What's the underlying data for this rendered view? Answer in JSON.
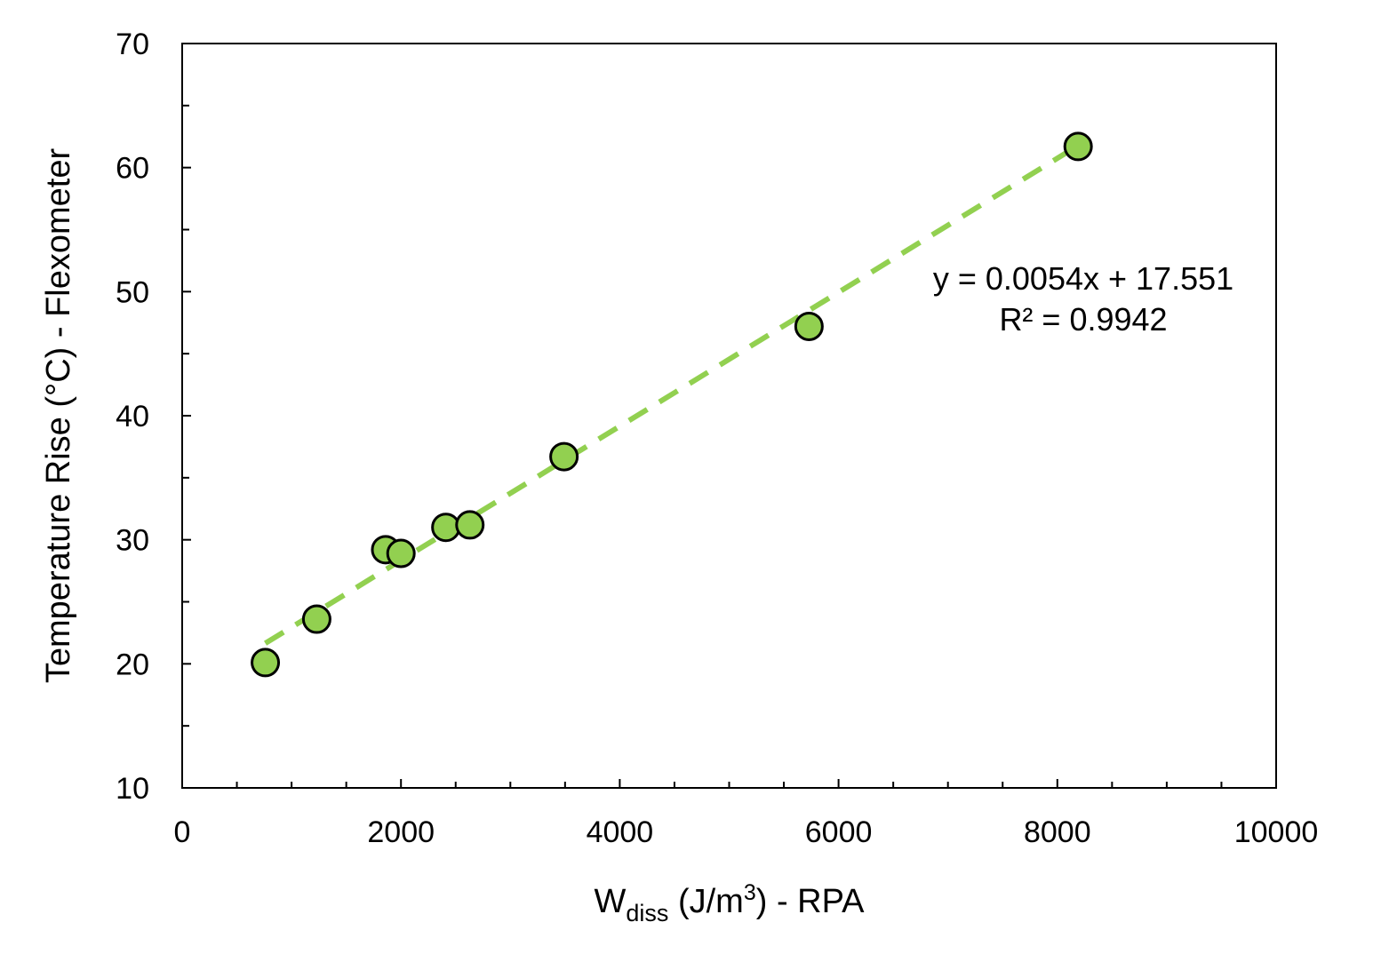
{
  "chart_data": {
    "type": "scatter",
    "xlim": [
      0,
      10000
    ],
    "ylim": [
      10,
      70
    ],
    "x_major_ticks": [
      0,
      2000,
      4000,
      6000,
      8000,
      10000
    ],
    "x_tick_labels": [
      "0",
      "2000",
      "4000",
      "6000",
      "8000",
      "10000"
    ],
    "x_minor_step": 500,
    "y_major_ticks": [
      10,
      20,
      30,
      40,
      50,
      60,
      70
    ],
    "y_tick_labels": [
      "10",
      "20",
      "30",
      "40",
      "50",
      "60",
      "70"
    ],
    "y_minor_step": 5,
    "xlabel": {
      "main": "W",
      "subscript": "diss",
      "middle": " (J/m",
      "superscript": "3",
      "end": ") - RPA"
    },
    "ylabel": "Temperature Rise (°C) - Flexometer",
    "grid": false,
    "legend": "none",
    "points": [
      {
        "x": 760,
        "y": 20.1
      },
      {
        "x": 1230,
        "y": 23.6
      },
      {
        "x": 1860,
        "y": 29.2
      },
      {
        "x": 2000,
        "y": 28.9
      },
      {
        "x": 2410,
        "y": 31.0
      },
      {
        "x": 2630,
        "y": 31.2
      },
      {
        "x": 3490,
        "y": 36.7
      },
      {
        "x": 5730,
        "y": 47.2
      },
      {
        "x": 8190,
        "y": 61.7
      }
    ],
    "marker_color": "#92d050",
    "marker_edge_color": "#000000",
    "trendline": {
      "type": "linear",
      "slope": 0.0054,
      "intercept": 17.551,
      "x_range": [
        760,
        8190
      ],
      "color": "#92d050",
      "style": "dashed",
      "equation_label": "y = 0.0054x + 17.551",
      "r2_label": "R² = 0.9942"
    }
  }
}
